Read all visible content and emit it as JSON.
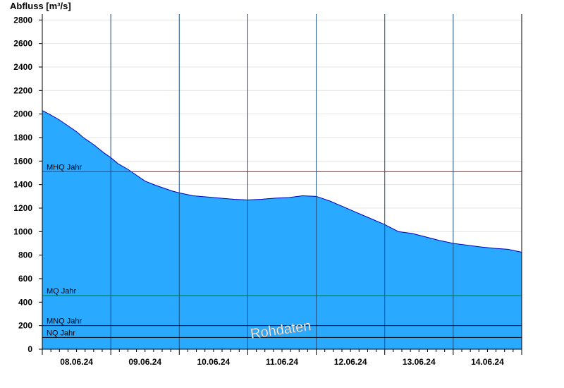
{
  "chart_data": {
    "type": "area",
    "ylabel": "Abfluss [m³/s]",
    "ylim": [
      0,
      2850
    ],
    "yticks": [
      0,
      200,
      400,
      600,
      800,
      1000,
      1200,
      1400,
      1600,
      1800,
      2000,
      2200,
      2400,
      2600,
      2800
    ],
    "xlim": [
      0,
      7
    ],
    "xtick_labels": [
      "08.06.24",
      "09.06.24",
      "10.06.24",
      "11.06.24",
      "12.06.24",
      "13.06.24",
      "14.06.24"
    ],
    "grid": true,
    "area_color": "#29a9ff",
    "line_color": "#0000c0",
    "series": [
      {
        "x": [
          0,
          0.1,
          0.25,
          0.4,
          0.5,
          0.6,
          0.75,
          0.9,
          1.0,
          1.1,
          1.25,
          1.4,
          1.5,
          1.65,
          1.8,
          1.9,
          2.0,
          2.2,
          2.4,
          2.6,
          2.8,
          3.0,
          3.2,
          3.4,
          3.6,
          3.8,
          4.0,
          4.2,
          4.4,
          4.6,
          4.8,
          5.0,
          5.2,
          5.4,
          5.6,
          5.8,
          6.0,
          6.2,
          6.4,
          6.6,
          6.8,
          7.0
        ],
        "y": [
          2030,
          2000,
          1950,
          1890,
          1850,
          1800,
          1740,
          1670,
          1630,
          1580,
          1530,
          1470,
          1430,
          1395,
          1365,
          1345,
          1330,
          1305,
          1295,
          1285,
          1275,
          1270,
          1275,
          1285,
          1290,
          1305,
          1300,
          1260,
          1210,
          1160,
          1110,
          1060,
          1000,
          985,
          955,
          925,
          900,
          885,
          870,
          858,
          850,
          825
        ]
      }
    ],
    "reference_lines": [
      {
        "label": "MHQ Jahr",
        "value": 1510,
        "color": "#ff0000"
      },
      {
        "label": "MQ Jahr",
        "value": 455,
        "color": "#008000"
      },
      {
        "label": "MNQ Jahr",
        "value": 200,
        "color": "#000000"
      },
      {
        "label": "NQ Jahr",
        "value": 100,
        "color": "#000000"
      }
    ],
    "watermark": "Rohdaten"
  }
}
